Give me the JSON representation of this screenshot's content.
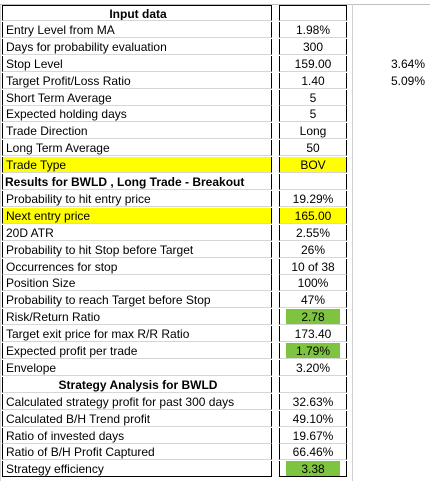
{
  "sheet": {
    "colors": {
      "highlight_yellow": "#ffff00",
      "highlight_green": "#7fc440"
    },
    "rows": [
      {
        "label": "Input data",
        "value": "",
        "extra": "",
        "style": "header"
      },
      {
        "label": "Entry Level from MA",
        "value": "1.98%",
        "extra": ""
      },
      {
        "label": "Days for probability evaluation",
        "value": "300",
        "extra": ""
      },
      {
        "label": "Stop Level",
        "value": "159.00",
        "extra": "3.64%"
      },
      {
        "label": "Target Profit/Loss Ratio",
        "value": "1.40",
        "extra": "5.09%"
      },
      {
        "label": "Short Term Average",
        "value": "5",
        "extra": ""
      },
      {
        "label": "Expected holding days",
        "value": "5",
        "extra": ""
      },
      {
        "label": "Trade Direction",
        "value": "Long",
        "extra": ""
      },
      {
        "label": "Long Term Average",
        "value": "50",
        "extra": ""
      },
      {
        "label": "Trade Type",
        "value": "BOV",
        "extra": "",
        "style": "yellow-row"
      },
      {
        "label": "Results for BWLD , Long Trade - Breakout",
        "value": "",
        "extra": "",
        "style": "bold-left"
      },
      {
        "label": "Probability to hit entry price",
        "value": "19.29%",
        "extra": ""
      },
      {
        "label": "Next entry price",
        "value": "165.00",
        "extra": "",
        "style": "yellow-row"
      },
      {
        "label": "20D ATR",
        "value": "2.55%",
        "extra": ""
      },
      {
        "label": "Probability to hit Stop before Target",
        "value": "26%",
        "extra": ""
      },
      {
        "label": "Occurrences for stop",
        "value": "10 of 38",
        "extra": ""
      },
      {
        "label": "Position Size",
        "value": "100%",
        "extra": ""
      },
      {
        "label": "Probability to reach Target before Stop",
        "value": "47%",
        "extra": ""
      },
      {
        "label": "Risk/Return Ratio",
        "value": "2.78",
        "extra": "",
        "style": "green-value"
      },
      {
        "label": "Target exit price for max R/R Ratio",
        "value": "173.40",
        "extra": ""
      },
      {
        "label": "Expected profit per trade",
        "value": "1.79%",
        "extra": "",
        "style": "green-value"
      },
      {
        "label": "Envelope",
        "value": "3.20%",
        "extra": ""
      },
      {
        "label": "Strategy Analysis for BWLD",
        "value": "",
        "extra": "",
        "style": "header"
      },
      {
        "label": "Calculated strategy profit for past 300 days",
        "value": "32.63%",
        "extra": ""
      },
      {
        "label": "Calculated B/H Trend profit",
        "value": "49.10%",
        "extra": ""
      },
      {
        "label": "Ratio of invested days",
        "value": "19.67%",
        "extra": ""
      },
      {
        "label": "Ratio of B/H Profit Captured",
        "value": "66.46%",
        "extra": ""
      },
      {
        "label": "Strategy efficiency",
        "value": "3.38",
        "extra": "",
        "style": "green-value"
      }
    ]
  }
}
